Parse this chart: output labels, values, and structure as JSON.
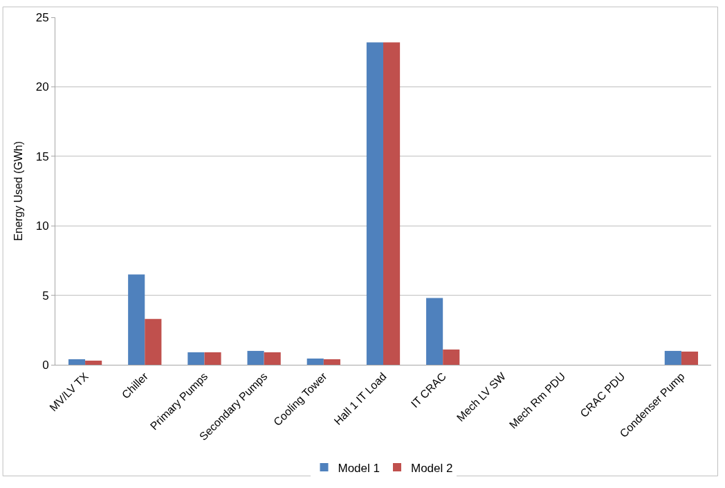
{
  "chart_data": {
    "type": "bar",
    "ylabel": "Energy Used (GWh)",
    "categories": [
      "MV/LV TX",
      "Chiller",
      "Primary Pumps",
      "Secondary Pumps",
      "Cooling Tower",
      "Hall 1 IT Load",
      "IT CRAC",
      "Mech LV SW",
      "Mech Rm PDU",
      "CRAC PDU",
      "Condenser Pump"
    ],
    "series": [
      {
        "name": "Model 1",
        "color": "#4f81bd",
        "values": [
          0.4,
          6.5,
          0.9,
          1.0,
          0.45,
          23.2,
          4.8,
          0,
          0,
          0,
          1.0
        ]
      },
      {
        "name": "Model 2",
        "color": "#c0504d",
        "values": [
          0.3,
          3.3,
          0.9,
          0.9,
          0.4,
          23.2,
          1.1,
          0,
          0,
          0,
          0.95
        ]
      }
    ],
    "ylim": [
      0,
      25
    ],
    "yticks": [
      0,
      5,
      10,
      15,
      20,
      25
    ],
    "grid": "y",
    "legend": "bottom"
  }
}
